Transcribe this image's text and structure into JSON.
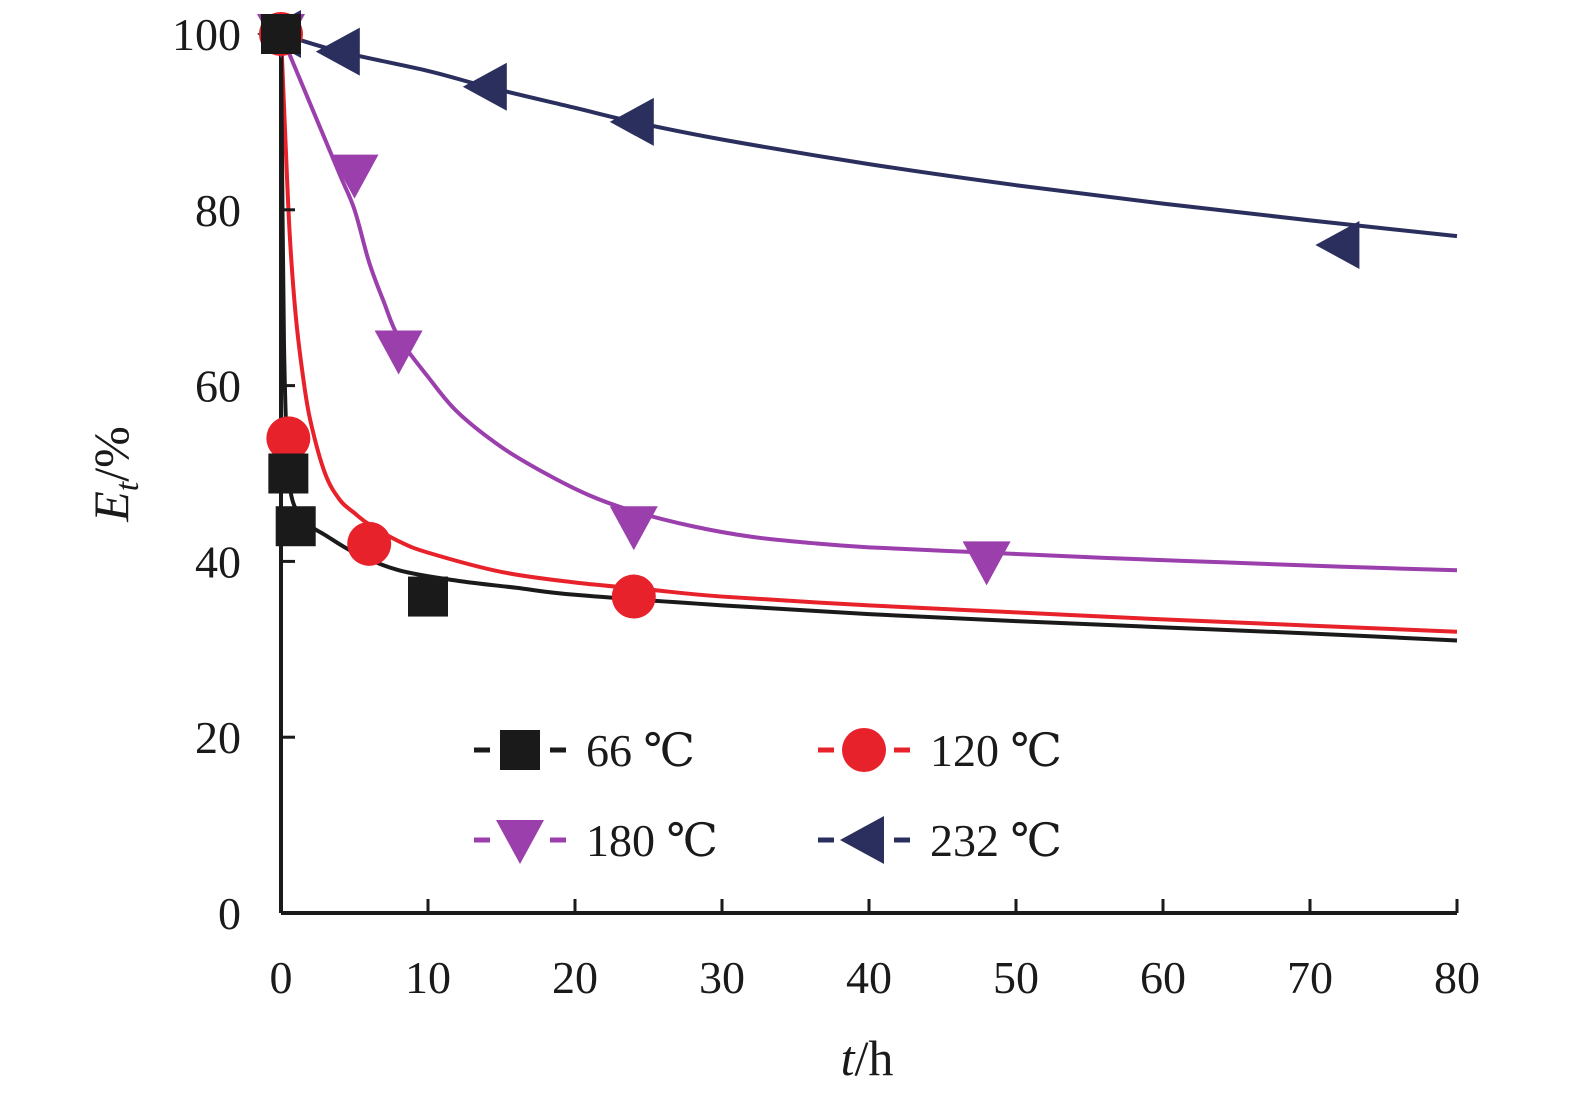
{
  "chart_data": {
    "type": "scatter",
    "title": "",
    "xlabel": {
      "italic": "t",
      "rest": "/h"
    },
    "ylabel": {
      "italic": "E",
      "sub": "t",
      "rest": "/%"
    },
    "xlim": [
      0,
      80
    ],
    "ylim": [
      0,
      100
    ],
    "xticks": [
      0,
      10,
      20,
      30,
      40,
      50,
      60,
      70,
      80
    ],
    "yticks": [
      0,
      20,
      40,
      60,
      80,
      100
    ],
    "grid": false,
    "legend": "bottom-center",
    "series": [
      {
        "name": "66 ℃",
        "color": "#1a1a1a",
        "marker": "square",
        "x": [
          0,
          0.5,
          1,
          10
        ],
        "y": [
          100,
          50,
          44,
          36
        ],
        "fit_x": [
          0,
          0.1,
          0.2,
          0.35,
          0.5,
          0.7,
          1,
          1.5,
          2,
          3,
          5,
          8,
          12,
          16,
          20,
          30,
          40,
          50,
          60,
          70,
          80
        ],
        "fit_y": [
          100,
          80,
          65,
          55,
          50,
          47.5,
          46,
          45,
          44,
          43,
          41,
          39,
          37.8,
          37,
          36.2,
          35,
          34,
          33.2,
          32.5,
          31.8,
          31
        ]
      },
      {
        "name": "120 ℃",
        "color": "#e8222a",
        "marker": "circle",
        "x": [
          0,
          0.5,
          6,
          24
        ],
        "y": [
          100,
          54,
          42,
          36
        ],
        "fit_x": [
          0,
          0.3,
          0.6,
          1,
          1.5,
          2,
          3,
          4,
          5,
          6,
          8,
          10,
          15,
          20,
          25,
          30,
          40,
          50,
          60,
          70,
          80
        ],
        "fit_y": [
          100,
          88,
          77,
          68,
          61,
          56,
          50,
          47,
          45.5,
          44.2,
          42.3,
          41,
          38.8,
          37.6,
          36.8,
          36,
          35,
          34.2,
          33.4,
          32.7,
          32
        ]
      },
      {
        "name": "180 ℃",
        "color": "#9b3fad",
        "marker": "triangle-down",
        "x": [
          0,
          5,
          8,
          24,
          48
        ],
        "y": [
          100,
          84,
          64,
          44,
          40
        ],
        "fit_x": [
          0,
          2,
          4,
          5,
          6,
          7,
          8,
          10,
          12,
          15,
          18,
          21,
          24,
          28,
          32,
          36,
          40,
          48,
          56,
          64,
          72,
          80
        ],
        "fit_y": [
          100,
          92,
          84,
          80,
          74,
          69.5,
          65.5,
          61,
          57,
          53,
          50,
          47.5,
          45.7,
          44,
          42.8,
          42.1,
          41.6,
          41,
          40.4,
          39.9,
          39.4,
          39
        ]
      },
      {
        "name": "232 ℃",
        "color": "#2b2f5e",
        "marker": "triangle-left",
        "x": [
          0,
          4,
          14,
          24,
          72
        ],
        "y": [
          100,
          98,
          94,
          90,
          76
        ],
        "fit_x": [
          0,
          4,
          10,
          14,
          20,
          24,
          30,
          40,
          50,
          60,
          70,
          80
        ],
        "fit_y": [
          100,
          98,
          95.8,
          94,
          91.6,
          90,
          88,
          85.2,
          82.8,
          80.7,
          78.8,
          77
        ]
      }
    ]
  }
}
